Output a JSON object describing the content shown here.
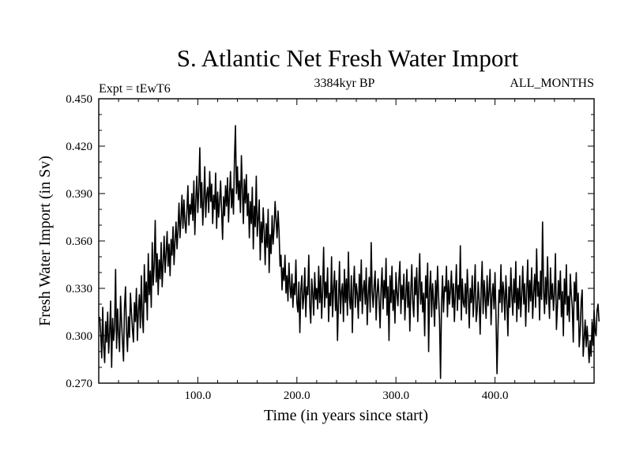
{
  "chart_data": {
    "type": "line",
    "title": "S. Atlantic Net Fresh Water Import",
    "subtitle_left": "Expt = tEwT6",
    "subtitle_center": "3384kyr BP",
    "subtitle_right": "ALL_MONTHS",
    "xlabel": "Time (in years since start)",
    "ylabel": "Fresh Water Import (in Sv)",
    "xlim": [
      0,
      500
    ],
    "ylim": [
      0.27,
      0.45
    ],
    "x_ticks": [
      100,
      200,
      300,
      400
    ],
    "x_tick_labels": [
      "100.0",
      "200.0",
      "300.0",
      "400.0"
    ],
    "y_ticks": [
      0.27,
      0.3,
      0.33,
      0.36,
      0.39,
      0.42,
      0.45
    ],
    "y_tick_labels": [
      "0.270",
      "0.300",
      "0.330",
      "0.360",
      "0.390",
      "0.420",
      "0.450"
    ],
    "series": [
      {
        "name": "Net fresh water import",
        "color": "#000000",
        "x_start": 1,
        "x_step": 1,
        "values": [
          0.312,
          0.301,
          0.286,
          0.318,
          0.293,
          0.283,
          0.309,
          0.296,
          0.315,
          0.289,
          0.302,
          0.322,
          0.28,
          0.311,
          0.297,
          0.305,
          0.342,
          0.292,
          0.317,
          0.301,
          0.29,
          0.325,
          0.309,
          0.296,
          0.284,
          0.318,
          0.331,
          0.303,
          0.29,
          0.312,
          0.299,
          0.327,
          0.315,
          0.304,
          0.296,
          0.321,
          0.309,
          0.33,
          0.297,
          0.316,
          0.326,
          0.305,
          0.338,
          0.312,
          0.302,
          0.345,
          0.321,
          0.334,
          0.31,
          0.352,
          0.326,
          0.341,
          0.318,
          0.359,
          0.332,
          0.345,
          0.373,
          0.334,
          0.352,
          0.326,
          0.348,
          0.336,
          0.359,
          0.331,
          0.346,
          0.363,
          0.34,
          0.352,
          0.366,
          0.344,
          0.358,
          0.338,
          0.361,
          0.351,
          0.369,
          0.345,
          0.36,
          0.372,
          0.355,
          0.367,
          0.384,
          0.362,
          0.374,
          0.389,
          0.368,
          0.386,
          0.372,
          0.365,
          0.379,
          0.395,
          0.37,
          0.383,
          0.377,
          0.39,
          0.373,
          0.398,
          0.364,
          0.386,
          0.401,
          0.378,
          0.392,
          0.419,
          0.381,
          0.397,
          0.37,
          0.386,
          0.407,
          0.375,
          0.389,
          0.394,
          0.378,
          0.404,
          0.385,
          0.396,
          0.371,
          0.389,
          0.38,
          0.403,
          0.368,
          0.391,
          0.375,
          0.385,
          0.398,
          0.379,
          0.361,
          0.388,
          0.376,
          0.395,
          0.382,
          0.4,
          0.372,
          0.39,
          0.404,
          0.381,
          0.393,
          0.377,
          0.412,
          0.433,
          0.39,
          0.407,
          0.386,
          0.398,
          0.378,
          0.414,
          0.392,
          0.371,
          0.399,
          0.384,
          0.402,
          0.376,
          0.39,
          0.362,
          0.385,
          0.371,
          0.394,
          0.355,
          0.382,
          0.369,
          0.401,
          0.363,
          0.374,
          0.386,
          0.348,
          0.372,
          0.359,
          0.381,
          0.366,
          0.345,
          0.371,
          0.356,
          0.38,
          0.34,
          0.364,
          0.352,
          0.376,
          0.358,
          0.368,
          0.385,
          0.373,
          0.362,
          0.379,
          0.366,
          0.344,
          0.351,
          0.329,
          0.343,
          0.335,
          0.351,
          0.327,
          0.338,
          0.322,
          0.346,
          0.331,
          0.324,
          0.339,
          0.318,
          0.333,
          0.326,
          0.348,
          0.321,
          0.315,
          0.334,
          0.302,
          0.329,
          0.338,
          0.317,
          0.325,
          0.343,
          0.312,
          0.331,
          0.326,
          0.351,
          0.319,
          0.308,
          0.336,
          0.327,
          0.313,
          0.34,
          0.323,
          0.33,
          0.317,
          0.344,
          0.321,
          0.338,
          0.311,
          0.329,
          0.356,
          0.318,
          0.334,
          0.324,
          0.343,
          0.309,
          0.327,
          0.319,
          0.35,
          0.312,
          0.33,
          0.341,
          0.316,
          0.335,
          0.297,
          0.322,
          0.347,
          0.314,
          0.328,
          0.333,
          0.309,
          0.342,
          0.321,
          0.336,
          0.313,
          0.353,
          0.324,
          0.317,
          0.338,
          0.302,
          0.329,
          0.344,
          0.318,
          0.333,
          0.326,
          0.311,
          0.339,
          0.322,
          0.348,
          0.314,
          0.329,
          0.335,
          0.32,
          0.343,
          0.307,
          0.326,
          0.337,
          0.315,
          0.359,
          0.328,
          0.318,
          0.332,
          0.341,
          0.31,
          0.327,
          0.336,
          0.322,
          0.305,
          0.33,
          0.343,
          0.317,
          0.335,
          0.324,
          0.349,
          0.313,
          0.331,
          0.297,
          0.338,
          0.321,
          0.344,
          0.316,
          0.329,
          0.308,
          0.34,
          0.327,
          0.319,
          0.336,
          0.347,
          0.314,
          0.332,
          0.323,
          0.339,
          0.31,
          0.325,
          0.342,
          0.318,
          0.334,
          0.303,
          0.328,
          0.345,
          0.321,
          0.312,
          0.337,
          0.326,
          0.343,
          0.309,
          0.331,
          0.352,
          0.32,
          0.334,
          0.315,
          0.327,
          0.3,
          0.338,
          0.324,
          0.346,
          0.29,
          0.329,
          0.341,
          0.312,
          0.333,
          0.322,
          0.306,
          0.335,
          0.317,
          0.344,
          0.326,
          0.31,
          0.273,
          0.32,
          0.338,
          0.315,
          0.331,
          0.328,
          0.344,
          0.312,
          0.335,
          0.32,
          0.329,
          0.341,
          0.318,
          0.333,
          0.309,
          0.327,
          0.345,
          0.316,
          0.332,
          0.323,
          0.357,
          0.31,
          0.336,
          0.321,
          0.318,
          0.333,
          0.314,
          0.342,
          0.326,
          0.305,
          0.33,
          0.321,
          0.338,
          0.312,
          0.327,
          0.345,
          0.309,
          0.316,
          0.334,
          0.322,
          0.301,
          0.329,
          0.347,
          0.314,
          0.335,
          0.324,
          0.311,
          0.338,
          0.319,
          0.328,
          0.342,
          0.307,
          0.325,
          0.333,
          0.317,
          0.34,
          0.312,
          0.276,
          0.304,
          0.329,
          0.321,
          0.345,
          0.315,
          0.334,
          0.327,
          0.31,
          0.338,
          0.322,
          0.3,
          0.331,
          0.318,
          0.343,
          0.325,
          0.313,
          0.336,
          0.321,
          0.347,
          0.309,
          0.33,
          0.317,
          0.338,
          0.312,
          0.326,
          0.344,
          0.32,
          0.333,
          0.306,
          0.329,
          0.348,
          0.315,
          0.335,
          0.322,
          0.343,
          0.311,
          0.327,
          0.339,
          0.318,
          0.355,
          0.325,
          0.334,
          0.31,
          0.341,
          0.323,
          0.372,
          0.329,
          0.314,
          0.337,
          0.32,
          0.35,
          0.326,
          0.311,
          0.343,
          0.323,
          0.333,
          0.316,
          0.327,
          0.352,
          0.304,
          0.318,
          0.335,
          0.323,
          0.341,
          0.312,
          0.328,
          0.3,
          0.336,
          0.32,
          0.345,
          0.313,
          0.325,
          0.309,
          0.339,
          0.326,
          0.318,
          0.296,
          0.334,
          0.322,
          0.34,
          0.31,
          0.327,
          0.293,
          0.303,
          0.322,
          0.329,
          0.287,
          0.298,
          0.31,
          0.293,
          0.306,
          0.295,
          0.283,
          0.297,
          0.287,
          0.309,
          0.294,
          0.316,
          0.303,
          0.3,
          0.316,
          0.32,
          0.309
        ]
      }
    ]
  }
}
